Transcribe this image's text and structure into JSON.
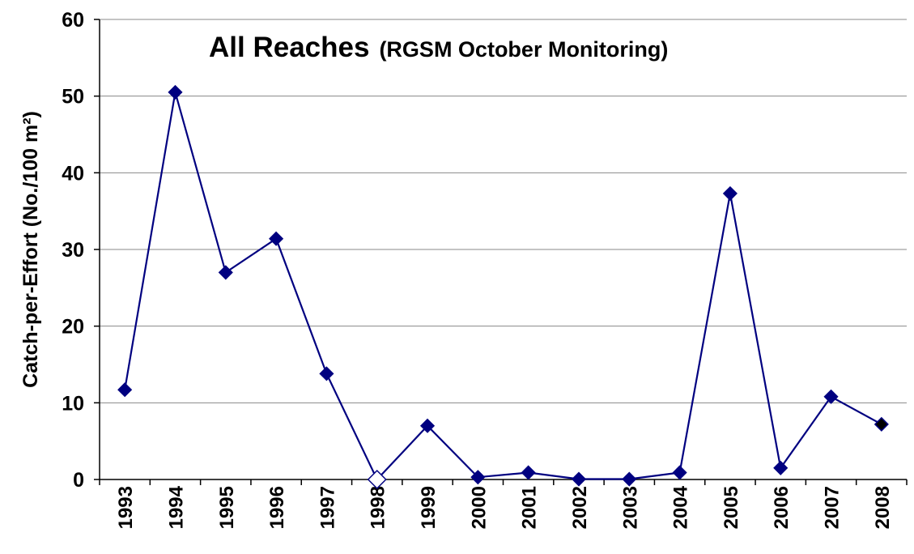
{
  "chart_data": {
    "type": "line",
    "title": "All Reaches",
    "subtitle": "(RGSM October Monitoring)",
    "y_label": "Catch-per-Effort (No./100 m²)",
    "categories": [
      "1993",
      "1994",
      "1995",
      "1996",
      "1997",
      "1998",
      "1999",
      "2000",
      "2001",
      "2002",
      "2003",
      "2004",
      "2005",
      "2006",
      "2007",
      "2008"
    ],
    "series": [
      {
        "name": "All Reaches",
        "color": "#000080",
        "values": [
          11.7,
          50.5,
          27,
          31.4,
          13.8,
          0,
          7,
          0.3,
          0.9,
          0.05,
          0.05,
          0.9,
          37.3,
          1.5,
          10.8,
          7.2
        ],
        "marker_fills": [
          "#000080",
          "#000080",
          "#000080",
          "#000080",
          "#000080",
          "#ffffff",
          "#000080",
          "#000080",
          "#000080",
          "#000080",
          "#000080",
          "#000080",
          "#000080",
          "#000080",
          "#000080",
          "#000000"
        ]
      }
    ],
    "ylim": [
      0,
      60
    ],
    "yticks": [
      0,
      10,
      20,
      30,
      40,
      50,
      60
    ],
    "grid": true
  }
}
